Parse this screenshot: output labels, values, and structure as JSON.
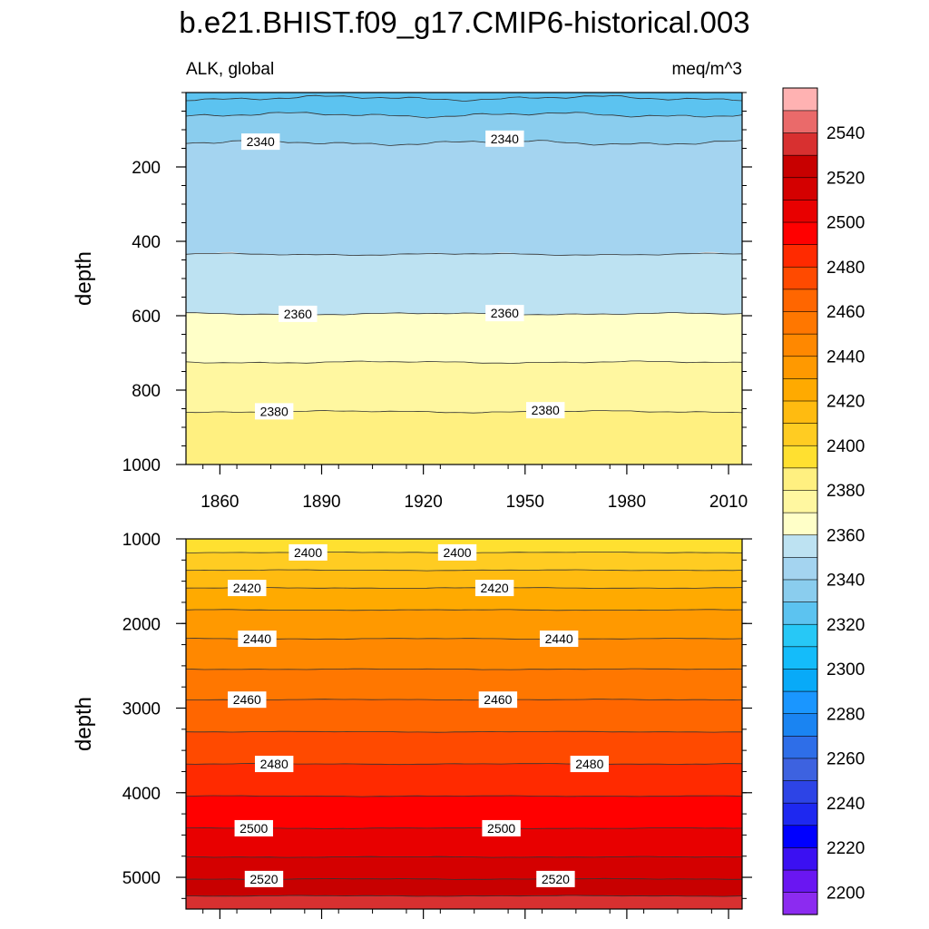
{
  "chart_data": {
    "type": "heatmap",
    "title": "b.e21.BHIST.f09_g17.CMIP6-historical.003",
    "left_label": "ALK, global",
    "right_label": "meq/m^3",
    "colors": {
      "background": "#ffffff",
      "contour_line": "#333333"
    },
    "x_axis": {
      "range": [
        1850,
        2014
      ],
      "ticks": [
        "1860",
        "1890",
        "1920",
        "1950",
        "1980",
        "2010"
      ]
    },
    "panels": [
      {
        "name": "upper",
        "ylabel": "depth",
        "ylim": [
          0,
          1000
        ],
        "inverted": true,
        "y_ticks": [
          "200",
          "400",
          "600",
          "800",
          "1000"
        ],
        "bands": [
          {
            "top": 0,
            "bottom": 15,
            "value": 2320
          },
          {
            "top": 15,
            "bottom": 60,
            "value": 2325
          },
          {
            "top": 60,
            "bottom": 135,
            "value": 2335
          },
          {
            "top": 135,
            "bottom": 435,
            "value": 2345
          },
          {
            "top": 435,
            "bottom": 595,
            "value": 2355
          },
          {
            "top": 595,
            "bottom": 725,
            "value": 2365
          },
          {
            "top": 725,
            "bottom": 858,
            "value": 2375
          },
          {
            "top": 858,
            "bottom": 1000,
            "value": 2385
          }
        ],
        "contour_labels": [
          {
            "year": 1872,
            "depth": 132,
            "text": "2340"
          },
          {
            "year": 1944,
            "depth": 124,
            "text": "2340"
          },
          {
            "year": 1883,
            "depth": 595,
            "text": "2360"
          },
          {
            "year": 1944,
            "depth": 593,
            "text": "2360"
          },
          {
            "year": 1876,
            "depth": 857,
            "text": "2380"
          },
          {
            "year": 1956,
            "depth": 854,
            "text": "2380"
          }
        ]
      },
      {
        "name": "lower",
        "ylabel": "depth",
        "ylim": [
          1000,
          5375
        ],
        "inverted": true,
        "y_ticks": [
          "1000",
          "2000",
          "3000",
          "4000",
          "5000"
        ],
        "bands": [
          {
            "top": 1000,
            "bottom": 1160,
            "value": 2395
          },
          {
            "top": 1160,
            "bottom": 1370,
            "value": 2405
          },
          {
            "top": 1370,
            "bottom": 1580,
            "value": 2415
          },
          {
            "top": 1580,
            "bottom": 1840,
            "value": 2425
          },
          {
            "top": 1840,
            "bottom": 2180,
            "value": 2435
          },
          {
            "top": 2180,
            "bottom": 2540,
            "value": 2445
          },
          {
            "top": 2540,
            "bottom": 2900,
            "value": 2455
          },
          {
            "top": 2900,
            "bottom": 3280,
            "value": 2465
          },
          {
            "top": 3280,
            "bottom": 3660,
            "value": 2475
          },
          {
            "top": 3660,
            "bottom": 4040,
            "value": 2485
          },
          {
            "top": 4040,
            "bottom": 4420,
            "value": 2495
          },
          {
            "top": 4420,
            "bottom": 4760,
            "value": 2505
          },
          {
            "top": 4760,
            "bottom": 5020,
            "value": 2515
          },
          {
            "top": 5020,
            "bottom": 5220,
            "value": 2525
          },
          {
            "top": 5220,
            "bottom": 5375,
            "value": 2535
          }
        ],
        "contour_lines": [
          1160,
          1370,
          1580,
          1840,
          2180,
          2540,
          2900,
          3280,
          3660,
          4040,
          4420,
          4760,
          5020,
          5220
        ],
        "contour_labels": [
          {
            "year": 1886,
            "depth": 1160,
            "text": "2400"
          },
          {
            "year": 1930,
            "depth": 1160,
            "text": "2400"
          },
          {
            "year": 1868,
            "depth": 1580,
            "text": "2420"
          },
          {
            "year": 1941,
            "depth": 1580,
            "text": "2420"
          },
          {
            "year": 1871,
            "depth": 2180,
            "text": "2440"
          },
          {
            "year": 1960,
            "depth": 2180,
            "text": "2440"
          },
          {
            "year": 1868,
            "depth": 2900,
            "text": "2460"
          },
          {
            "year": 1942,
            "depth": 2900,
            "text": "2460"
          },
          {
            "year": 1876,
            "depth": 3660,
            "text": "2480"
          },
          {
            "year": 1969,
            "depth": 3660,
            "text": "2480"
          },
          {
            "year": 1870,
            "depth": 4420,
            "text": "2500"
          },
          {
            "year": 1943,
            "depth": 4420,
            "text": "2500"
          },
          {
            "year": 1873,
            "depth": 5020,
            "text": "2520"
          },
          {
            "year": 1959,
            "depth": 5020,
            "text": "2520"
          }
        ]
      }
    ],
    "colorbar": {
      "levels": [
        2200,
        2210,
        2220,
        2230,
        2240,
        2250,
        2260,
        2270,
        2280,
        2290,
        2300,
        2310,
        2320,
        2330,
        2340,
        2350,
        2360,
        2370,
        2380,
        2390,
        2400,
        2410,
        2420,
        2430,
        2440,
        2450,
        2460,
        2470,
        2480,
        2490,
        2500,
        2510,
        2520,
        2530,
        2540,
        2550
      ],
      "labels": [
        "2200",
        "2220",
        "2240",
        "2260",
        "2280",
        "2300",
        "2320",
        "2340",
        "2360",
        "2380",
        "2400",
        "2420",
        "2440",
        "2460",
        "2480",
        "2500",
        "2520",
        "2540"
      ],
      "colors": [
        "#8c2bf0",
        "#6a16f2",
        "#3b10f2",
        "#0000ff",
        "#1e28f0",
        "#2d44e6",
        "#3d62e0",
        "#2e6ee8",
        "#1a84f2",
        "#1a96ff",
        "#08aaf8",
        "#14bcfa",
        "#27c8f6",
        "#5cc3f0",
        "#8acdee",
        "#a4d4f0",
        "#bde2f2",
        "#ffffc8",
        "#fff7a0",
        "#fff080",
        "#ffe030",
        "#ffcc22",
        "#ffbb10",
        "#ffaa00",
        "#ff9900",
        "#ff8800",
        "#ff7700",
        "#ff6600",
        "#ff4a00",
        "#ff2a00",
        "#ff0000",
        "#e80000",
        "#d40000",
        "#c80000",
        "#d83030",
        "#ea6a6a",
        "#ffb2b2"
      ]
    }
  }
}
